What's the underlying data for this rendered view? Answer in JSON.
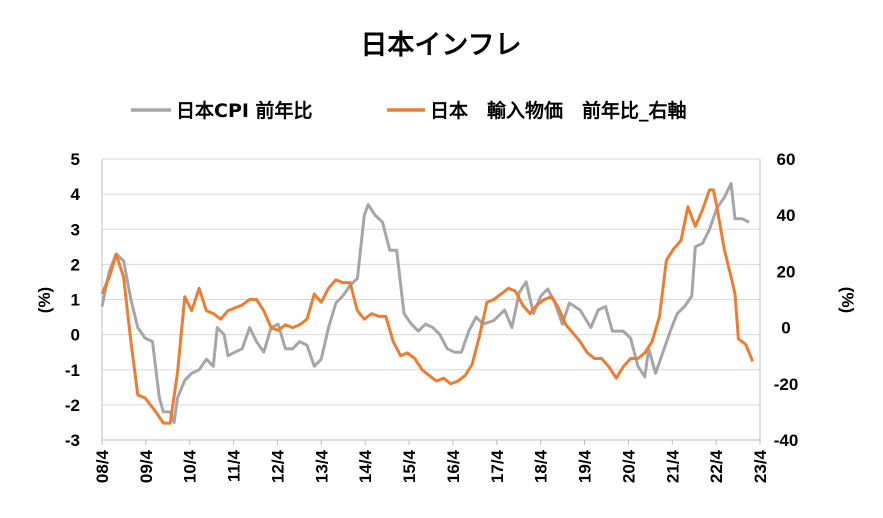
{
  "chart_data": {
    "type": "line",
    "title": "日本インフレ",
    "legend_position": "top",
    "grid": true,
    "x_tick_labels": [
      "08/4",
      "09/4",
      "10/4",
      "11/4",
      "12/4",
      "13/4",
      "14/4",
      "15/4",
      "16/4",
      "17/4",
      "18/4",
      "19/4",
      "20/4",
      "21/4",
      "22/4",
      "23/4"
    ],
    "x_range": [
      2008.25,
      2023.5
    ],
    "y_left": {
      "label": "(%)",
      "range": [
        -3,
        5
      ],
      "ticks": [
        5,
        4,
        3,
        2,
        1,
        0,
        -1,
        -2,
        -3
      ]
    },
    "y_right": {
      "label": "(%)",
      "range": [
        -40,
        60
      ],
      "ticks": [
        60,
        40,
        20,
        0,
        -20,
        -40
      ]
    },
    "series": [
      {
        "name": "日本CPI 前年比",
        "axis": "left",
        "color": "#a6a6a6",
        "points": [
          [
            2008.25,
            0.8
          ],
          [
            2008.42,
            1.8
          ],
          [
            2008.58,
            2.3
          ],
          [
            2008.75,
            2.1
          ],
          [
            2008.92,
            1.0
          ],
          [
            2009.08,
            0.2
          ],
          [
            2009.25,
            -0.1
          ],
          [
            2009.42,
            -0.2
          ],
          [
            2009.5,
            -1.0
          ],
          [
            2009.58,
            -1.8
          ],
          [
            2009.67,
            -2.2
          ],
          [
            2009.83,
            -2.2
          ],
          [
            2009.92,
            -2.5
          ],
          [
            2010.0,
            -1.8
          ],
          [
            2010.17,
            -1.3
          ],
          [
            2010.33,
            -1.1
          ],
          [
            2010.5,
            -1.0
          ],
          [
            2010.67,
            -0.7
          ],
          [
            2010.83,
            -0.9
          ],
          [
            2010.92,
            0.2
          ],
          [
            2011.08,
            0.0
          ],
          [
            2011.17,
            -0.6
          ],
          [
            2011.33,
            -0.5
          ],
          [
            2011.5,
            -0.4
          ],
          [
            2011.67,
            0.2
          ],
          [
            2011.83,
            -0.2
          ],
          [
            2012.0,
            -0.5
          ],
          [
            2012.17,
            0.2
          ],
          [
            2012.33,
            0.3
          ],
          [
            2012.5,
            -0.4
          ],
          [
            2012.67,
            -0.4
          ],
          [
            2012.83,
            -0.2
          ],
          [
            2013.0,
            -0.3
          ],
          [
            2013.17,
            -0.9
          ],
          [
            2013.33,
            -0.7
          ],
          [
            2013.5,
            0.2
          ],
          [
            2013.67,
            0.9
          ],
          [
            2013.83,
            1.1
          ],
          [
            2014.0,
            1.4
          ],
          [
            2014.17,
            1.6
          ],
          [
            2014.33,
            3.4
          ],
          [
            2014.42,
            3.7
          ],
          [
            2014.58,
            3.4
          ],
          [
            2014.75,
            3.2
          ],
          [
            2014.92,
            2.4
          ],
          [
            2015.08,
            2.4
          ],
          [
            2015.25,
            0.6
          ],
          [
            2015.42,
            0.3
          ],
          [
            2015.58,
            0.1
          ],
          [
            2015.75,
            0.3
          ],
          [
            2015.92,
            0.2
          ],
          [
            2016.08,
            0.0
          ],
          [
            2016.25,
            -0.4
          ],
          [
            2016.42,
            -0.5
          ],
          [
            2016.58,
            -0.5
          ],
          [
            2016.75,
            0.1
          ],
          [
            2016.92,
            0.5
          ],
          [
            2017.08,
            0.3
          ],
          [
            2017.33,
            0.4
          ],
          [
            2017.58,
            0.7
          ],
          [
            2017.75,
            0.2
          ],
          [
            2017.92,
            1.2
          ],
          [
            2018.08,
            1.5
          ],
          [
            2018.25,
            0.6
          ],
          [
            2018.42,
            1.1
          ],
          [
            2018.58,
            1.3
          ],
          [
            2018.75,
            0.9
          ],
          [
            2018.92,
            0.3
          ],
          [
            2019.08,
            0.9
          ],
          [
            2019.33,
            0.7
          ],
          [
            2019.58,
            0.2
          ],
          [
            2019.75,
            0.7
          ],
          [
            2019.92,
            0.8
          ],
          [
            2020.08,
            0.1
          ],
          [
            2020.33,
            0.1
          ],
          [
            2020.5,
            -0.1
          ],
          [
            2020.67,
            -0.9
          ],
          [
            2020.83,
            -1.2
          ],
          [
            2020.92,
            -0.4
          ],
          [
            2021.08,
            -1.1
          ],
          [
            2021.25,
            -0.5
          ],
          [
            2021.42,
            0.1
          ],
          [
            2021.58,
            0.6
          ],
          [
            2021.75,
            0.8
          ],
          [
            2021.92,
            1.1
          ],
          [
            2022.0,
            2.5
          ],
          [
            2022.17,
            2.6
          ],
          [
            2022.33,
            3.0
          ],
          [
            2022.5,
            3.6
          ],
          [
            2022.67,
            3.9
          ],
          [
            2022.83,
            4.3
          ],
          [
            2022.92,
            3.3
          ],
          [
            2023.08,
            3.3
          ],
          [
            2023.25,
            3.2
          ]
        ]
      },
      {
        "name": "日本　輸入物価　前年比_右軸",
        "axis": "right",
        "color": "#ed7d31",
        "points": [
          [
            2008.25,
            12
          ],
          [
            2008.42,
            18
          ],
          [
            2008.58,
            26
          ],
          [
            2008.75,
            18
          ],
          [
            2008.92,
            -5
          ],
          [
            2009.08,
            -24
          ],
          [
            2009.25,
            -25
          ],
          [
            2009.5,
            -30
          ],
          [
            2009.67,
            -34
          ],
          [
            2009.83,
            -34
          ],
          [
            2010.0,
            -16
          ],
          [
            2010.17,
            11
          ],
          [
            2010.33,
            6
          ],
          [
            2010.5,
            14
          ],
          [
            2010.67,
            6
          ],
          [
            2010.83,
            5
          ],
          [
            2011.0,
            3
          ],
          [
            2011.17,
            6
          ],
          [
            2011.33,
            7
          ],
          [
            2011.5,
            8
          ],
          [
            2011.67,
            10
          ],
          [
            2011.83,
            10
          ],
          [
            2012.0,
            6
          ],
          [
            2012.17,
            0
          ],
          [
            2012.33,
            -1
          ],
          [
            2012.5,
            1
          ],
          [
            2012.67,
            0
          ],
          [
            2012.83,
            1
          ],
          [
            2013.0,
            3
          ],
          [
            2013.17,
            12
          ],
          [
            2013.33,
            9
          ],
          [
            2013.5,
            14
          ],
          [
            2013.67,
            17
          ],
          [
            2013.83,
            16
          ],
          [
            2014.0,
            16
          ],
          [
            2014.17,
            6
          ],
          [
            2014.33,
            3
          ],
          [
            2014.5,
            5
          ],
          [
            2014.67,
            4
          ],
          [
            2014.83,
            4
          ],
          [
            2015.0,
            -5
          ],
          [
            2015.17,
            -10
          ],
          [
            2015.33,
            -9
          ],
          [
            2015.5,
            -11
          ],
          [
            2015.67,
            -15
          ],
          [
            2015.83,
            -17
          ],
          [
            2016.0,
            -19
          ],
          [
            2016.17,
            -18
          ],
          [
            2016.33,
            -20
          ],
          [
            2016.5,
            -19
          ],
          [
            2016.67,
            -17
          ],
          [
            2016.83,
            -13
          ],
          [
            2017.0,
            -3
          ],
          [
            2017.17,
            9
          ],
          [
            2017.33,
            10
          ],
          [
            2017.5,
            12
          ],
          [
            2017.67,
            14
          ],
          [
            2017.83,
            13
          ],
          [
            2018.0,
            8
          ],
          [
            2018.17,
            5
          ],
          [
            2018.33,
            8
          ],
          [
            2018.5,
            10
          ],
          [
            2018.67,
            11
          ],
          [
            2018.83,
            7
          ],
          [
            2019.0,
            1
          ],
          [
            2019.17,
            -2
          ],
          [
            2019.33,
            -5
          ],
          [
            2019.5,
            -9
          ],
          [
            2019.67,
            -11
          ],
          [
            2019.83,
            -11
          ],
          [
            2020.0,
            -14
          ],
          [
            2020.17,
            -18
          ],
          [
            2020.33,
            -14
          ],
          [
            2020.5,
            -11
          ],
          [
            2020.67,
            -11
          ],
          [
            2020.83,
            -9
          ],
          [
            2021.0,
            -5
          ],
          [
            2021.17,
            4
          ],
          [
            2021.33,
            24
          ],
          [
            2021.5,
            28
          ],
          [
            2021.67,
            31
          ],
          [
            2021.83,
            43
          ],
          [
            2022.0,
            36
          ],
          [
            2022.17,
            42
          ],
          [
            2022.33,
            49
          ],
          [
            2022.42,
            49
          ],
          [
            2022.5,
            43
          ],
          [
            2022.67,
            28
          ],
          [
            2022.83,
            18
          ],
          [
            2022.92,
            12
          ],
          [
            2023.0,
            -4
          ],
          [
            2023.17,
            -6
          ],
          [
            2023.33,
            -12
          ]
        ]
      }
    ]
  }
}
